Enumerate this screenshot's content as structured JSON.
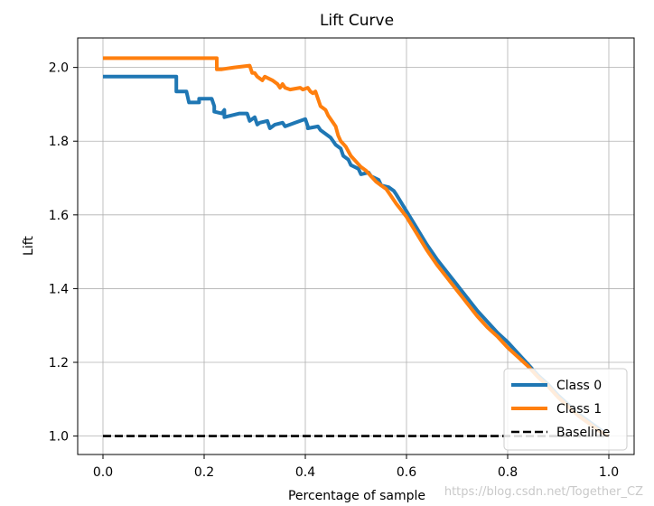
{
  "chart_data": {
    "type": "line",
    "title": "Lift Curve",
    "xlabel": "Percentage of sample",
    "ylabel": "Lift",
    "xlim": [
      -0.05,
      1.05
    ],
    "ylim": [
      0.95,
      2.08
    ],
    "xticks": [
      0.0,
      0.2,
      0.4,
      0.6,
      0.8,
      1.0
    ],
    "xtick_labels": [
      "0.0",
      "0.2",
      "0.4",
      "0.6",
      "0.8",
      "1.0"
    ],
    "yticks": [
      1.0,
      1.2,
      1.4,
      1.6,
      1.8,
      2.0
    ],
    "ytick_labels": [
      "1.0",
      "1.2",
      "1.4",
      "1.6",
      "1.8",
      "2.0"
    ],
    "grid": true,
    "legend_position": "lower-right",
    "series": [
      {
        "name": "Class 0",
        "color": "#1f77b4",
        "style": "solid",
        "x": [
          0.0,
          0.145,
          0.145,
          0.165,
          0.17,
          0.19,
          0.19,
          0.215,
          0.22,
          0.22,
          0.235,
          0.24,
          0.24,
          0.27,
          0.285,
          0.29,
          0.3,
          0.305,
          0.31,
          0.325,
          0.33,
          0.34,
          0.355,
          0.36,
          0.38,
          0.4,
          0.405,
          0.405,
          0.425,
          0.43,
          0.44,
          0.45,
          0.46,
          0.47,
          0.475,
          0.485,
          0.49,
          0.505,
          0.51,
          0.525,
          0.53,
          0.545,
          0.55,
          0.565,
          0.575,
          0.58,
          0.6,
          0.62,
          0.64,
          0.66,
          0.68,
          0.7,
          0.72,
          0.74,
          0.76,
          0.78,
          0.8,
          0.82,
          0.84,
          0.86,
          0.88,
          0.9,
          0.92,
          0.94,
          0.96,
          0.98,
          1.0
        ],
        "y": [
          1.975,
          1.975,
          1.935,
          1.935,
          1.905,
          1.905,
          1.915,
          1.915,
          1.895,
          1.88,
          1.875,
          1.885,
          1.865,
          1.875,
          1.875,
          1.855,
          1.865,
          1.845,
          1.85,
          1.855,
          1.835,
          1.845,
          1.85,
          1.84,
          1.85,
          1.86,
          1.84,
          1.835,
          1.84,
          1.83,
          1.82,
          1.81,
          1.79,
          1.78,
          1.76,
          1.75,
          1.735,
          1.725,
          1.71,
          1.715,
          1.705,
          1.695,
          1.68,
          1.675,
          1.665,
          1.655,
          1.61,
          1.565,
          1.52,
          1.48,
          1.445,
          1.41,
          1.375,
          1.34,
          1.31,
          1.28,
          1.255,
          1.225,
          1.195,
          1.165,
          1.14,
          1.11,
          1.085,
          1.06,
          1.04,
          1.02,
          1.0
        ]
      },
      {
        "name": "Class 1",
        "color": "#ff7f0e",
        "style": "solid",
        "x": [
          0.0,
          0.225,
          0.225,
          0.235,
          0.26,
          0.29,
          0.295,
          0.3,
          0.305,
          0.315,
          0.32,
          0.335,
          0.345,
          0.35,
          0.355,
          0.36,
          0.37,
          0.39,
          0.395,
          0.405,
          0.41,
          0.415,
          0.42,
          0.425,
          0.43,
          0.44,
          0.445,
          0.45,
          0.46,
          0.465,
          0.47,
          0.48,
          0.49,
          0.5,
          0.51,
          0.52,
          0.53,
          0.54,
          0.55,
          0.56,
          0.57,
          0.58,
          0.6,
          0.62,
          0.64,
          0.66,
          0.68,
          0.7,
          0.72,
          0.74,
          0.76,
          0.78,
          0.8,
          0.82,
          0.84,
          0.86,
          0.88,
          0.9,
          0.92,
          0.94,
          0.96,
          0.98,
          1.0
        ],
        "y": [
          2.025,
          2.025,
          1.995,
          1.995,
          2.0,
          2.005,
          1.985,
          1.985,
          1.975,
          1.965,
          1.975,
          1.965,
          1.955,
          1.945,
          1.955,
          1.945,
          1.94,
          1.945,
          1.94,
          1.945,
          1.935,
          1.93,
          1.935,
          1.915,
          1.895,
          1.885,
          1.87,
          1.86,
          1.84,
          1.815,
          1.8,
          1.785,
          1.76,
          1.745,
          1.73,
          1.72,
          1.705,
          1.69,
          1.68,
          1.67,
          1.65,
          1.63,
          1.595,
          1.55,
          1.505,
          1.465,
          1.43,
          1.395,
          1.36,
          1.325,
          1.295,
          1.27,
          1.24,
          1.215,
          1.19,
          1.16,
          1.135,
          1.105,
          1.08,
          1.055,
          1.035,
          1.015,
          1.0
        ]
      },
      {
        "name": "Baseline",
        "color": "#000000",
        "style": "dashed",
        "x": [
          0.0,
          1.0
        ],
        "y": [
          1.0,
          1.0
        ]
      }
    ]
  },
  "watermark": "https://blog.csdn.net/Together_CZ"
}
